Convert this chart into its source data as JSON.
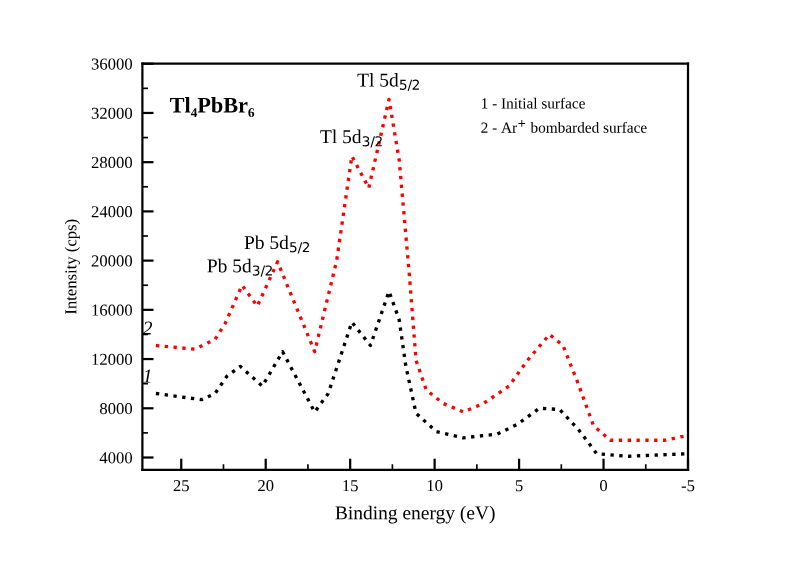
{
  "chart_data": {
    "type": "line",
    "xlabel": "Binding energy (eV)",
    "ylabel": "Intensity (cps)",
    "xlim": [
      27.3,
      -5
    ],
    "xticks": [
      25,
      20,
      15,
      10,
      5,
      0,
      -5
    ],
    "ylim": [
      3000,
      36000
    ],
    "yticks": [
      4000,
      8000,
      12000,
      16000,
      20000,
      24000,
      28000,
      32000,
      36000
    ],
    "grid": false,
    "legend": false,
    "line_style": "dotted",
    "marker": "none",
    "series": [
      {
        "color": "#000000",
        "x": [
          26.5,
          23.8,
          23,
          22.3,
          21.5,
          20.2,
          19,
          17.1,
          16.3,
          14.9,
          13.8,
          12.7,
          12.1,
          11.7,
          11.1,
          9.9,
          8.3,
          6.3,
          5.1,
          3.8,
          2.6,
          1.5,
          0.4,
          -1.5,
          -4.8
        ],
        "values": [
          9200,
          8700,
          9200,
          10600,
          11400,
          9800,
          12600,
          7700,
          9200,
          15000,
          13100,
          17500,
          15200,
          11400,
          7600,
          6100,
          5600,
          5900,
          6700,
          8000,
          7900,
          6300,
          4300,
          4100,
          4300
        ]
      },
      {
        "color": "#ff0000",
        "x": [
          26.5,
          24.2,
          23,
          22.4,
          21.4,
          20.5,
          19.3,
          17.1,
          15.8,
          14.9,
          13.9,
          12.7,
          12.1,
          11.5,
          11.1,
          10.5,
          9.5,
          8.3,
          7.1,
          5.6,
          4.5,
          3.2,
          2.4,
          1.5,
          0.6,
          -0.4,
          -3.6,
          -5
        ],
        "values": [
          13100,
          12800,
          13600,
          14900,
          18000,
          16300,
          19900,
          12600,
          20000,
          28500,
          25900,
          33100,
          28200,
          18900,
          11900,
          9500,
          8400,
          7700,
          8400,
          9800,
          11900,
          14000,
          13100,
          10000,
          6600,
          5400,
          5400,
          5800
        ]
      }
    ],
    "annotations": [
      "Tl₄PbBr₆",
      {
        "text": "Pb 5d$_{3/2}$",
        "x": 21.5,
        "y": 18000
      },
      {
        "text": "Pb 5d$_{5/2}$",
        "x": 19.3,
        "y": 19900
      },
      {
        "text": "Tl 5d$_{3/2}$",
        "x": 14.9,
        "y": 28500
      },
      {
        "text": "Tl 5d$_{5/2}$",
        "x": 12.7,
        "y": 33100
      },
      {
        "text": "1",
        "x": 26.5,
        "y": 9200
      },
      {
        "text": "2",
        "x": 26.5,
        "y": 13100
      },
      "1 - Initial surface",
      "2 - Ar$^{+}$ bombarded surface"
    ]
  }
}
